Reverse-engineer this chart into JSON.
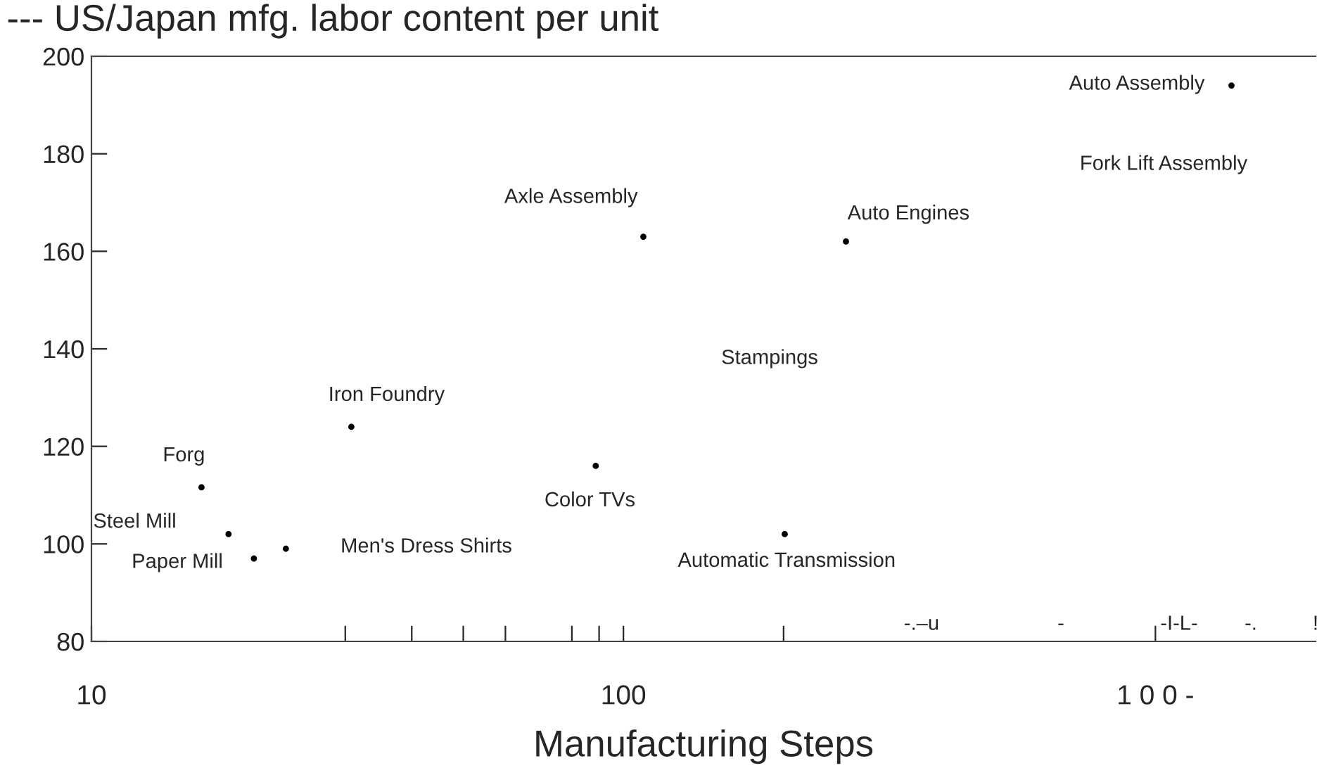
{
  "chart_data": {
    "type": "scatter",
    "title": "--- US/Japan mfg. labor content per unit",
    "xlabel": "Manufacturing Steps",
    "log": "x",
    "marker": "circle",
    "xlim": [
      10,
      2000
    ],
    "xticks": [
      10,
      100,
      {
        "value": 1000,
        "label": "1 0 0 -"
      },
      {
        "value": 30,
        "label": null
      },
      {
        "value": 40,
        "label": null
      },
      {
        "value": 50,
        "label": null
      },
      {
        "value": 60,
        "label": null
      },
      {
        "value": 80,
        "label": null
      },
      {
        "value": 90,
        "label": null
      },
      {
        "value": 200,
        "label": null
      }
    ],
    "ylim": [
      80,
      200
    ],
    "yticks": [
      80,
      100,
      120,
      140,
      160,
      180,
      200
    ],
    "series": [
      {
        "color": "#000000",
        "x": [
          16.1,
          18.1,
          20.2,
          23.2,
          30.8,
          88.7,
          109,
          262,
          201,
          1390
        ],
        "values": [
          111.6,
          102,
          97,
          99,
          124,
          116,
          163,
          162,
          102,
          194
        ]
      }
    ],
    "annotations": [
      "Auto Assembly",
      "Fork Lift Assembly",
      {
        "text": "Axle Assembly",
        "x": 109,
        "y": 163
      },
      {
        "text": "Auto Engines",
        "x": 262,
        "y": 162
      },
      "Stampings",
      {
        "text": "Iron Foundry",
        "x": 30.8,
        "y": 124
      },
      {
        "text": "Forg",
        "x": 16.1,
        "y": 111.6
      },
      {
        "text": "Color TVs",
        "x": 88.7,
        "y": 116
      },
      {
        "text": "Steel Mill",
        "x": 18.1,
        "y": 102
      },
      "Paper Mill",
      "Men's Dress Shirts",
      {
        "text": "Automatic Transmission",
        "x": 201,
        "y": 102
      },
      "-.–u",
      "-",
      "-I-L-",
      "-.",
      "!"
    ]
  }
}
